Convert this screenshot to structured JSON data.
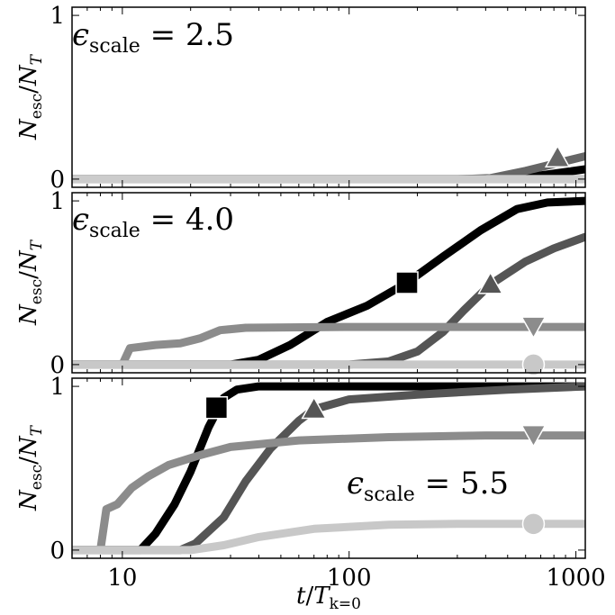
{
  "chart_data": [
    {
      "type": "line",
      "annotation": {
        "symbol": "ϵ",
        "sub": "scale",
        "text": " = 2.5"
      },
      "ylabel": {
        "main": "N",
        "sub1": "esc",
        "slash": "/",
        "main2": "N",
        "sub2": "T"
      },
      "y_ticks": [
        "0",
        "1"
      ],
      "xlim": [
        6,
        1100
      ],
      "ylim": [
        -0.05,
        1.05
      ],
      "xscale": "log",
      "series": [
        {
          "color": "#000000",
          "marker": "square",
          "points": [
            [
              6,
              0
            ],
            [
              300,
              0
            ],
            [
              600,
              0.01
            ],
            [
              1100,
              0.06
            ]
          ]
        },
        {
          "color": "#666666",
          "marker": "triangle-up",
          "marker_at": [
            830,
            0.13
          ],
          "points": [
            [
              6,
              0
            ],
            [
              400,
              0
            ],
            [
              600,
              0.05
            ],
            [
              1100,
              0.14
            ]
          ]
        },
        {
          "color": "#999999",
          "marker": "triangle-down",
          "points": [
            [
              6,
              0
            ],
            [
              1100,
              0
            ]
          ]
        },
        {
          "color": "#cccccc",
          "marker": "circle",
          "points": [
            [
              6,
              0
            ],
            [
              1100,
              0
            ]
          ]
        }
      ]
    },
    {
      "type": "line",
      "annotation": {
        "symbol": "ϵ",
        "sub": "scale",
        "text": " = 4.0"
      },
      "ylabel": {
        "main": "N",
        "sub1": "esc",
        "slash": "/",
        "main2": "N",
        "sub2": "T"
      },
      "y_ticks": [
        "0",
        "1"
      ],
      "xlim": [
        6,
        1100
      ],
      "ylim": [
        -0.05,
        1.05
      ],
      "xscale": "log",
      "series": [
        {
          "color": "#000000",
          "marker": "square",
          "marker_at": [
            180,
            0.5
          ],
          "points": [
            [
              6,
              0
            ],
            [
              30,
              0
            ],
            [
              40,
              0.03
            ],
            [
              55,
              0.12
            ],
            [
              80,
              0.26
            ],
            [
              120,
              0.36
            ],
            [
              180,
              0.5
            ],
            [
              260,
              0.66
            ],
            [
              380,
              0.82
            ],
            [
              550,
              0.95
            ],
            [
              750,
              0.99
            ],
            [
              1100,
              1.0
            ]
          ]
        },
        {
          "color": "#555555",
          "marker": "triangle-up",
          "marker_at": [
            420,
            0.49
          ],
          "points": [
            [
              6,
              0
            ],
            [
              100,
              0
            ],
            [
              150,
              0.02
            ],
            [
              200,
              0.08
            ],
            [
              260,
              0.2
            ],
            [
              320,
              0.33
            ],
            [
              420,
              0.49
            ],
            [
              600,
              0.63
            ],
            [
              800,
              0.71
            ],
            [
              1100,
              0.78
            ]
          ]
        },
        {
          "color": "#8c8c8c",
          "marker": "triangle-down",
          "marker_at": [
            650,
            0.23
          ],
          "points": [
            [
              6,
              0
            ],
            [
              10,
              0
            ],
            [
              10.8,
              0.1
            ],
            [
              14,
              0.12
            ],
            [
              18,
              0.13
            ],
            [
              22,
              0.16
            ],
            [
              27,
              0.21
            ],
            [
              35,
              0.225
            ],
            [
              100,
              0.23
            ],
            [
              1100,
              0.23
            ]
          ]
        },
        {
          "color": "#c8c8c8",
          "marker": "circle",
          "marker_at": [
            650,
            0.0
          ],
          "points": [
            [
              6,
              0
            ],
            [
              1100,
              0
            ]
          ]
        }
      ]
    },
    {
      "type": "line",
      "annotation": {
        "symbol": "ϵ",
        "sub": "scale",
        "text": " = 5.5"
      },
      "ylabel": {
        "main": "N",
        "sub1": "esc",
        "slash": "/",
        "main2": "N",
        "sub2": "T"
      },
      "y_ticks": [
        "0",
        "1"
      ],
      "x_ticks": [
        "10",
        "100",
        "1000"
      ],
      "xlabel": {
        "main": "t",
        "slash": "/",
        "main2": "T",
        "sub": "k=0"
      },
      "xlim": [
        6,
        1100
      ],
      "ylim": [
        -0.05,
        1.05
      ],
      "xscale": "log",
      "series": [
        {
          "color": "#000000",
          "marker": "square",
          "marker_at": [
            26,
            0.87
          ],
          "points": [
            [
              6,
              0
            ],
            [
              12,
              0
            ],
            [
              14,
              0.1
            ],
            [
              17,
              0.28
            ],
            [
              20,
              0.48
            ],
            [
              24,
              0.75
            ],
            [
              28,
              0.93
            ],
            [
              32,
              0.98
            ],
            [
              40,
              1.0
            ],
            [
              1100,
              1.0
            ]
          ]
        },
        {
          "color": "#555555",
          "marker": "triangle-up",
          "marker_at": [
            70,
            0.86
          ],
          "points": [
            [
              6,
              0
            ],
            [
              18,
              0
            ],
            [
              21,
              0.04
            ],
            [
              28,
              0.2
            ],
            [
              35,
              0.42
            ],
            [
              45,
              0.62
            ],
            [
              60,
              0.79
            ],
            [
              70,
              0.86
            ],
            [
              100,
              0.92
            ],
            [
              200,
              0.95
            ],
            [
              500,
              0.98
            ],
            [
              1100,
              1.0
            ]
          ]
        },
        {
          "color": "#8c8c8c",
          "marker": "triangle-down",
          "marker_at": [
            650,
            0.7
          ],
          "points": [
            [
              6,
              0
            ],
            [
              8,
              0
            ],
            [
              8.5,
              0.25
            ],
            [
              9.5,
              0.28
            ],
            [
              11,
              0.38
            ],
            [
              13,
              0.45
            ],
            [
              16,
              0.52
            ],
            [
              22,
              0.58
            ],
            [
              30,
              0.63
            ],
            [
              60,
              0.67
            ],
            [
              150,
              0.69
            ],
            [
              400,
              0.7
            ],
            [
              1100,
              0.7
            ]
          ]
        },
        {
          "color": "#c8c8c8",
          "marker": "circle",
          "marker_at": [
            650,
            0.16
          ],
          "points": [
            [
              6,
              0
            ],
            [
              20,
              0
            ],
            [
              28,
              0.03
            ],
            [
              40,
              0.08
            ],
            [
              70,
              0.13
            ],
            [
              150,
              0.155
            ],
            [
              300,
              0.16
            ],
            [
              1100,
              0.16
            ]
          ]
        }
      ]
    }
  ]
}
